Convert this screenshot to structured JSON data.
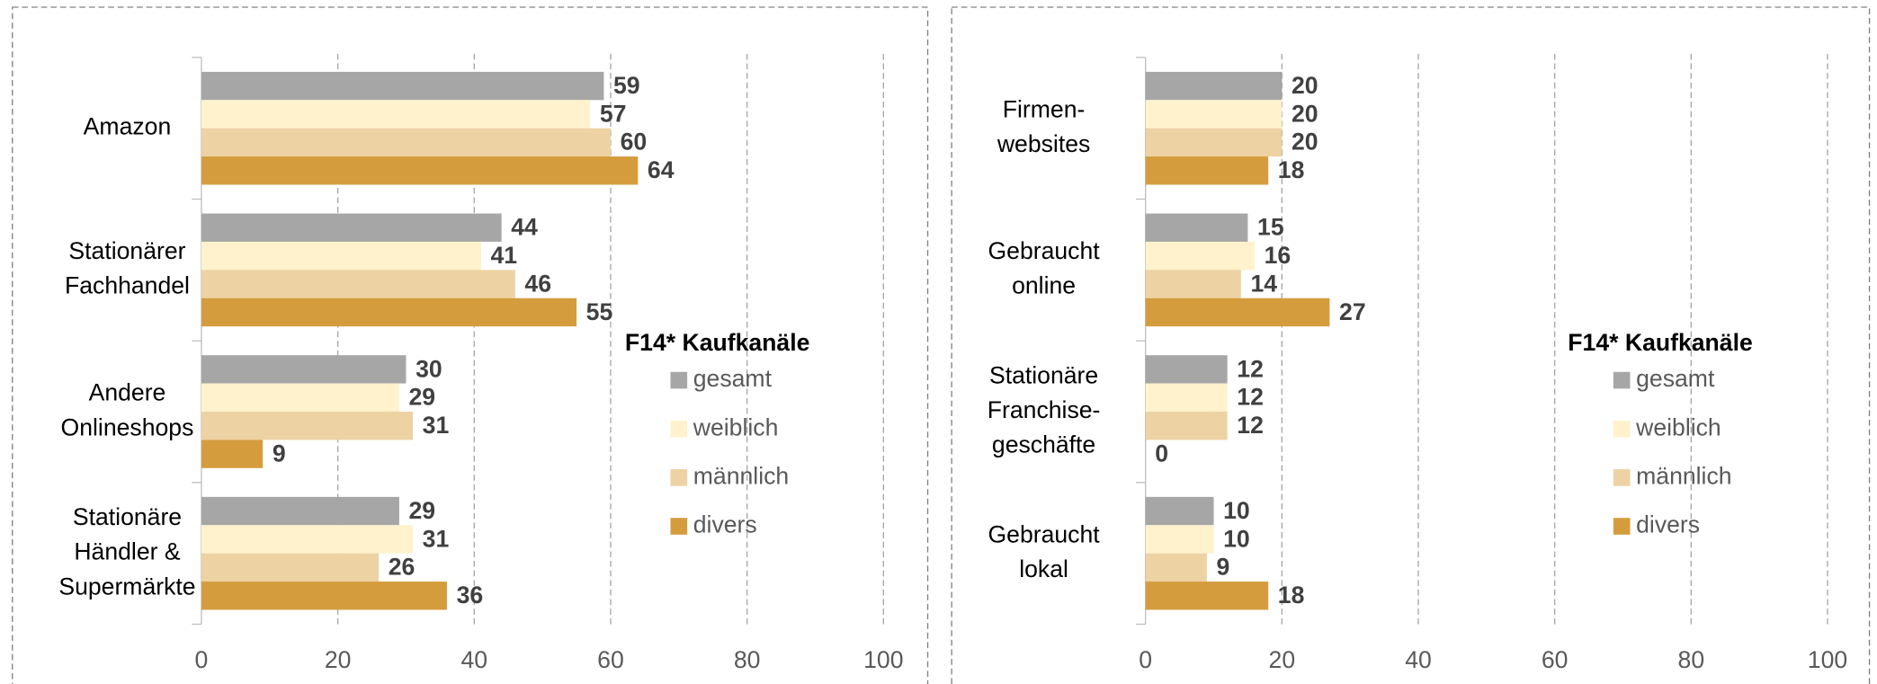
{
  "chart_data": [
    {
      "type": "bar",
      "orientation": "horizontal",
      "categories": [
        [
          "Amazon"
        ],
        [
          "Stationärer",
          "Fachhandel"
        ],
        [
          "Andere",
          "Onlineshops"
        ],
        [
          "Stationäre",
          "Händler &",
          "Supermärkte"
        ]
      ],
      "series": [
        {
          "name": "gesamt",
          "color": "#a6a6a6",
          "values": [
            59,
            44,
            30,
            29
          ]
        },
        {
          "name": "weiblich",
          "color": "#fff2cc",
          "values": [
            57,
            41,
            29,
            31
          ]
        },
        {
          "name": "männlich",
          "color": "#edd2a3",
          "values": [
            60,
            46,
            31,
            26
          ]
        },
        {
          "name": "divers",
          "color": "#d59c3e",
          "values": [
            64,
            55,
            9,
            36
          ]
        }
      ],
      "xlim": [
        0,
        100
      ],
      "xticks": [
        0,
        20,
        40,
        60,
        80,
        100
      ],
      "grid": true,
      "legend_title": "F14* Kaufkanäle"
    },
    {
      "type": "bar",
      "orientation": "horizontal",
      "categories": [
        [
          "Firmen-",
          "websites"
        ],
        [
          "Gebraucht",
          "online"
        ],
        [
          "Stationäre",
          "Franchise-",
          "geschäfte"
        ],
        [
          "Gebraucht",
          "lokal"
        ]
      ],
      "series": [
        {
          "name": "gesamt",
          "color": "#a6a6a6",
          "values": [
            20,
            15,
            12,
            10
          ]
        },
        {
          "name": "weiblich",
          "color": "#fff2cc",
          "values": [
            20,
            16,
            12,
            10
          ]
        },
        {
          "name": "männlich",
          "color": "#edd2a3",
          "values": [
            20,
            14,
            12,
            9
          ]
        },
        {
          "name": "divers",
          "color": "#d59c3e",
          "values": [
            18,
            27,
            0,
            18
          ]
        }
      ],
      "xlim": [
        0,
        100
      ],
      "xticks": [
        0,
        20,
        40,
        60,
        80,
        100
      ],
      "grid": true,
      "legend_title": "F14* Kaufkanäle"
    }
  ]
}
